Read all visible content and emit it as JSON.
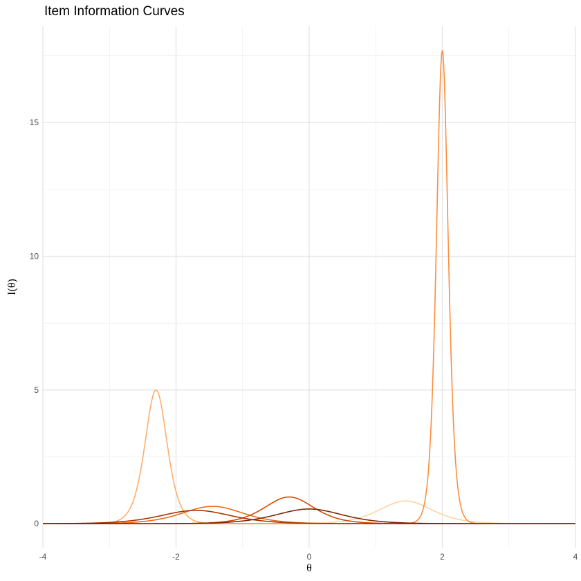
{
  "chart_data": {
    "type": "line",
    "title": "Item Information Curves",
    "xlabel": "θ",
    "ylabel": "I(θ)",
    "xlim": [
      -4,
      4
    ],
    "ylim": [
      -0.9,
      18.6
    ],
    "x_ticks": [
      -4,
      -2,
      0,
      2,
      4
    ],
    "x_tick_labels": [
      "-4",
      "-2",
      "0",
      "2",
      "4"
    ],
    "y_ticks": [
      0,
      5,
      10,
      15
    ],
    "y_tick_labels": [
      "0",
      "5",
      "10",
      "15"
    ],
    "grid": true,
    "legend": "none",
    "series": [
      {
        "color": "#fdd49e",
        "peak_theta": 1.45,
        "peak_info": 0.85,
        "a": 1.85
      },
      {
        "color": "#fdae6b",
        "peak_theta": -2.3,
        "peak_info": 5.0,
        "a": 4.47
      },
      {
        "color": "#fd8d3c",
        "peak_theta": 2.0,
        "peak_info": 17.7,
        "a": 8.41
      },
      {
        "color": "#f16913",
        "peak_theta": -1.45,
        "peak_info": 0.65,
        "a": 1.61
      },
      {
        "color": "#d94801",
        "peak_theta": -0.3,
        "peak_info": 1.0,
        "a": 2.0
      },
      {
        "color": "#a63603",
        "peak_theta": -1.7,
        "peak_info": 0.5,
        "a": 1.41
      },
      {
        "color": "#7f2704",
        "peak_theta": 0.0,
        "peak_info": 0.55,
        "a": 1.48
      }
    ]
  }
}
